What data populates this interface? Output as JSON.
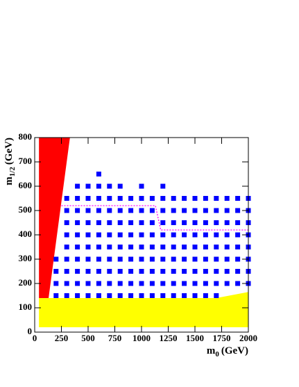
{
  "chart_data": {
    "type": "scatter",
    "xlabel": {
      "main": "m",
      "sub": "0",
      "unit": "(GeV)"
    },
    "ylabel": {
      "main": "m",
      "sub": "1/2",
      "unit": "(GeV)"
    },
    "xlim": [
      0,
      2000
    ],
    "ylim": [
      0,
      800
    ],
    "xticks": [
      0,
      250,
      500,
      750,
      1000,
      1250,
      1500,
      1750,
      2000
    ],
    "yticks": [
      0,
      100,
      200,
      300,
      400,
      500,
      600,
      700,
      800
    ],
    "color": "#0000ff",
    "rows": [
      {
        "y": 150,
        "x": [
          200,
          300,
          400,
          500,
          600,
          700,
          800,
          900,
          1000,
          1100,
          1200,
          1300,
          1400,
          1500,
          1600,
          1700
        ]
      },
      {
        "y": 200,
        "x": [
          200,
          300,
          400,
          500,
          600,
          700,
          800,
          900,
          1000,
          1100,
          1200,
          1300,
          1400,
          1500,
          1600,
          1700,
          1800,
          1900,
          2000
        ]
      },
      {
        "y": 250,
        "x": [
          200,
          300,
          400,
          500,
          600,
          700,
          800,
          900,
          1000,
          1100,
          1200,
          1300,
          1400,
          1500,
          1600,
          1700,
          1800,
          1900,
          2000
        ]
      },
      {
        "y": 300,
        "x": [
          200,
          300,
          400,
          500,
          600,
          700,
          800,
          900,
          1000,
          1100,
          1200,
          1300,
          1400,
          1500,
          1600,
          1700,
          1800,
          1900,
          2000
        ]
      },
      {
        "y": 350,
        "x": [
          300,
          400,
          500,
          600,
          700,
          800,
          900,
          1000,
          1100,
          1200,
          1300,
          1400,
          1500,
          1600,
          1700,
          1800,
          1900,
          2000
        ]
      },
      {
        "y": 400,
        "x": [
          300,
          400,
          500,
          600,
          700,
          800,
          900,
          1000,
          1100,
          1200,
          1300,
          1400,
          1500,
          1600,
          1700,
          1800,
          1900,
          2000
        ]
      },
      {
        "y": 450,
        "x": [
          300,
          400,
          500,
          600,
          700,
          800,
          900,
          1000,
          1100,
          1200,
          1300,
          1400,
          1500,
          1600,
          1700,
          1800,
          1900,
          2000
        ]
      },
      {
        "y": 500,
        "x": [
          300,
          400,
          500,
          600,
          700,
          800,
          900,
          1000,
          1100,
          1200,
          1300,
          1400,
          1500,
          1600,
          1700,
          1800,
          1900,
          2000
        ]
      },
      {
        "y": 550,
        "x": [
          300,
          400,
          500,
          600,
          700,
          800,
          900,
          1000,
          1100,
          1200,
          1300,
          1400,
          1500,
          1600,
          1700,
          1800,
          1900,
          2000
        ]
      },
      {
        "y": 600,
        "x": [
          400,
          500,
          600,
          700,
          800,
          1000,
          1200
        ]
      },
      {
        "y": 650,
        "x": [
          600
        ]
      }
    ],
    "regions": [
      {
        "color": "#ffff00",
        "x": [
          40,
          40,
          1700,
          2000,
          2000
        ],
        "y": [
          20,
          140,
          140,
          165,
          20
        ]
      },
      {
        "color": "#ff0000",
        "x": [
          40,
          330,
          130,
          40
        ],
        "y": [
          800,
          800,
          140,
          140
        ]
      }
    ],
    "contour": {
      "color": "#ff00ff",
      "x": [
        250,
        1130,
        1180,
        2000
      ],
      "y": [
        520,
        520,
        420,
        420
      ]
    }
  }
}
